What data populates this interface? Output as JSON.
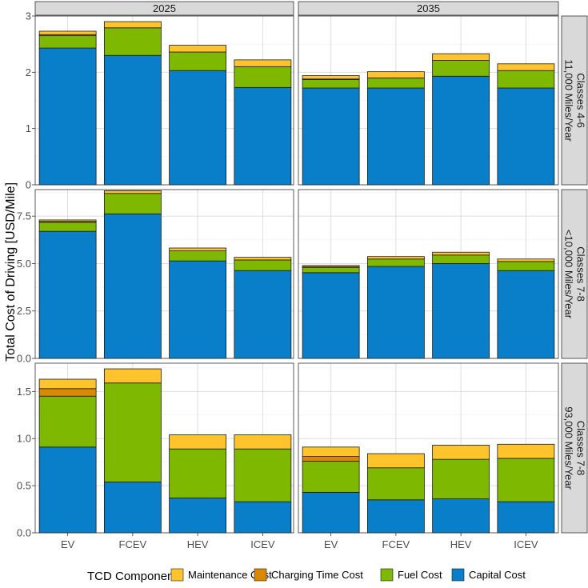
{
  "chart_data": {
    "type": "bar",
    "stacked": true,
    "ylabel": "Total Cost of Driving [USD/Mile]",
    "xlabel": "",
    "categories": [
      "EV",
      "FCEV",
      "HEV",
      "ICEV"
    ],
    "columns": [
      "2025",
      "2035"
    ],
    "legend": {
      "title": "TCD Component",
      "position": "bottom",
      "items": [
        "Maintenance Cost",
        "Charging Time Cost",
        "Fuel Cost",
        "Capital Cost"
      ]
    },
    "components": [
      "Capital Cost",
      "Fuel Cost",
      "Charging Time Cost",
      "Maintenance Cost"
    ],
    "colors": {
      "Capital Cost": "#0a7fc9",
      "Fuel Cost": "#7fb800",
      "Charging Time Cost": "#d98a00",
      "Maintenance Cost": "#ffc32b"
    },
    "grid": true,
    "rows": [
      {
        "label": "Classes 4-6\n11,000 Miles/Year",
        "ylim": [
          0,
          3
        ],
        "yticks": [
          0,
          1,
          2,
          3
        ],
        "ytick_labels": [
          "0",
          "1",
          "2",
          "3"
        ],
        "panels": {
          "2025": {
            "EV": {
              "Capital Cost": 2.43,
              "Fuel Cost": 0.22,
              "Charging Time Cost": 0.02,
              "Maintenance Cost": 0.06
            },
            "FCEV": {
              "Capital Cost": 2.3,
              "Fuel Cost": 0.49,
              "Charging Time Cost": 0.0,
              "Maintenance Cost": 0.11
            },
            "HEV": {
              "Capital Cost": 2.03,
              "Fuel Cost": 0.33,
              "Charging Time Cost": 0.0,
              "Maintenance Cost": 0.12
            },
            "ICEV": {
              "Capital Cost": 1.73,
              "Fuel Cost": 0.37,
              "Charging Time Cost": 0.0,
              "Maintenance Cost": 0.12
            }
          },
          "2035": {
            "EV": {
              "Capital Cost": 1.72,
              "Fuel Cost": 0.15,
              "Charging Time Cost": 0.01,
              "Maintenance Cost": 0.06
            },
            "FCEV": {
              "Capital Cost": 1.72,
              "Fuel Cost": 0.18,
              "Charging Time Cost": 0.0,
              "Maintenance Cost": 0.11
            },
            "HEV": {
              "Capital Cost": 1.93,
              "Fuel Cost": 0.28,
              "Charging Time Cost": 0.0,
              "Maintenance Cost": 0.12
            },
            "ICEV": {
              "Capital Cost": 1.72,
              "Fuel Cost": 0.31,
              "Charging Time Cost": 0.0,
              "Maintenance Cost": 0.12
            }
          }
        }
      },
      {
        "label": "Classes 7-8\n<10,000 Miles/Year",
        "ylim": [
          0,
          8.9
        ],
        "yticks": [
          0,
          2.5,
          5,
          7.5
        ],
        "ytick_labels": [
          "0.0",
          "2.5",
          "5.0",
          "7.5"
        ],
        "panels": {
          "2025": {
            "EV": {
              "Capital Cost": 6.7,
              "Fuel Cost": 0.48,
              "Charging Time Cost": 0.04,
              "Maintenance Cost": 0.08
            },
            "FCEV": {
              "Capital Cost": 7.62,
              "Fuel Cost": 1.08,
              "Charging Time Cost": 0.0,
              "Maintenance Cost": 0.14
            },
            "HEV": {
              "Capital Cost": 5.14,
              "Fuel Cost": 0.53,
              "Charging Time Cost": 0.0,
              "Maintenance Cost": 0.15
            },
            "ICEV": {
              "Capital Cost": 4.63,
              "Fuel Cost": 0.56,
              "Charging Time Cost": 0.0,
              "Maintenance Cost": 0.14
            }
          },
          "2035": {
            "EV": {
              "Capital Cost": 4.52,
              "Fuel Cost": 0.28,
              "Charging Time Cost": 0.03,
              "Maintenance Cost": 0.07
            },
            "FCEV": {
              "Capital Cost": 4.85,
              "Fuel Cost": 0.39,
              "Charging Time Cost": 0.0,
              "Maintenance Cost": 0.13
            },
            "HEV": {
              "Capital Cost": 5.0,
              "Fuel Cost": 0.45,
              "Charging Time Cost": 0.0,
              "Maintenance Cost": 0.15
            },
            "ICEV": {
              "Capital Cost": 4.63,
              "Fuel Cost": 0.48,
              "Charging Time Cost": 0.0,
              "Maintenance Cost": 0.13
            }
          }
        }
      },
      {
        "label": "Classes 7-8\n93,000 Miles/Year",
        "ylim": [
          0,
          1.8
        ],
        "yticks": [
          0,
          0.5,
          1,
          1.5
        ],
        "ytick_labels": [
          "0.0",
          "0.5",
          "1.0",
          "1.5"
        ],
        "panels": {
          "2025": {
            "EV": {
              "Capital Cost": 0.91,
              "Fuel Cost": 0.54,
              "Charging Time Cost": 0.08,
              "Maintenance Cost": 0.1
            },
            "FCEV": {
              "Capital Cost": 0.54,
              "Fuel Cost": 1.05,
              "Charging Time Cost": 0.0,
              "Maintenance Cost": 0.15
            },
            "HEV": {
              "Capital Cost": 0.37,
              "Fuel Cost": 0.52,
              "Charging Time Cost": 0.0,
              "Maintenance Cost": 0.15
            },
            "ICEV": {
              "Capital Cost": 0.33,
              "Fuel Cost": 0.56,
              "Charging Time Cost": 0.0,
              "Maintenance Cost": 0.15
            }
          },
          "2035": {
            "EV": {
              "Capital Cost": 0.43,
              "Fuel Cost": 0.33,
              "Charging Time Cost": 0.05,
              "Maintenance Cost": 0.1
            },
            "FCEV": {
              "Capital Cost": 0.35,
              "Fuel Cost": 0.34,
              "Charging Time Cost": 0.0,
              "Maintenance Cost": 0.15
            },
            "HEV": {
              "Capital Cost": 0.36,
              "Fuel Cost": 0.42,
              "Charging Time Cost": 0.0,
              "Maintenance Cost": 0.15
            },
            "ICEV": {
              "Capital Cost": 0.33,
              "Fuel Cost": 0.46,
              "Charging Time Cost": 0.0,
              "Maintenance Cost": 0.15
            }
          }
        }
      }
    ]
  }
}
